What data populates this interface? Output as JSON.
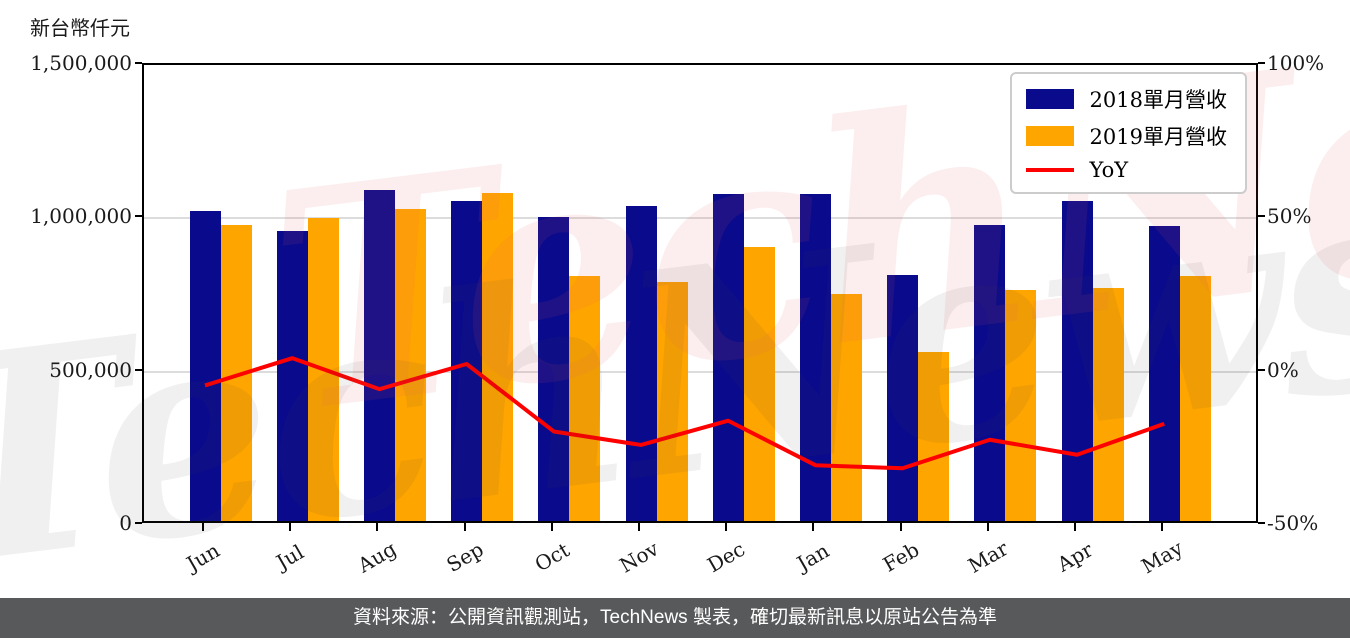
{
  "chart": {
    "unit_label": "新台幣仟元",
    "watermark_text": "TechNews"
  },
  "legend": {
    "items": [
      {
        "label": "2018單月營收",
        "color": "#0a0a8c",
        "swatch": "box"
      },
      {
        "label": "2019單月營收",
        "color": "#ffa500",
        "swatch": "box"
      },
      {
        "label": "YoY",
        "color": "#ff0000",
        "swatch": "line"
      }
    ]
  },
  "footer": {
    "text": "資料來源：公開資訊觀測站，TechNews 製表，確切最新訊息以原站公告為準"
  },
  "chart_data": {
    "type": "bar",
    "title": "",
    "categories": [
      "Jun",
      "Jul",
      "Aug",
      "Sep",
      "Oct",
      "Nov",
      "Dec",
      "Jan",
      "Feb",
      "Mar",
      "Apr",
      "May"
    ],
    "series": [
      {
        "name": "2018單月營收",
        "type": "bar",
        "axis": "left",
        "color": "#0a0a8c",
        "values": [
          1010000,
          947000,
          1078000,
          1044000,
          991000,
          1026000,
          1065000,
          1065000,
          803000,
          966000,
          1042000,
          961000
        ]
      },
      {
        "name": "2019單月營收",
        "type": "bar",
        "axis": "left",
        "color": "#ffa500",
        "values": [
          965000,
          988000,
          1017000,
          1070000,
          798000,
          781000,
          895000,
          740000,
          550000,
          752000,
          760000,
          798000
        ]
      },
      {
        "name": "YoY",
        "type": "line",
        "axis": "right",
        "color": "#ff0000",
        "values": [
          -4.5,
          4.4,
          -5.7,
          2.5,
          -19.5,
          -23.9,
          -16.0,
          -30.5,
          -31.5,
          -22.2,
          -27.1,
          -17.0
        ]
      }
    ],
    "left_axis": {
      "label": "新台幣仟元",
      "min": 0,
      "max": 1500000,
      "ticks": [
        {
          "label": "0",
          "value": 0
        },
        {
          "label": "500,000",
          "value": 500000
        },
        {
          "label": "1,000,000",
          "value": 1000000
        },
        {
          "label": "1,500,000",
          "value": 1500000
        }
      ],
      "gridlines": [
        500000,
        1000000
      ]
    },
    "right_axis": {
      "label": "",
      "min": -50,
      "max": 100,
      "unit": "%",
      "ticks": [
        {
          "label": "-50%",
          "value": -50
        },
        {
          "label": "0%",
          "value": 0
        },
        {
          "label": "50%",
          "value": 50
        },
        {
          "label": "100%",
          "value": 100
        }
      ]
    },
    "legend_position": "upper right",
    "grid": "horizontal"
  }
}
